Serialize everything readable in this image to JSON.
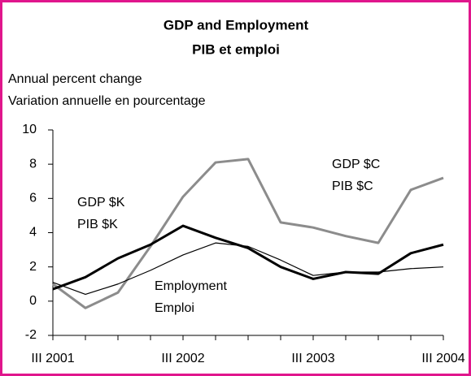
{
  "chart_data": {
    "type": "line",
    "title": "GDP and Employment",
    "subtitle": "PIB et emploi",
    "y_label": "Annual percent change",
    "y_label_fr": "Variation annuelle en pourcentage",
    "categories": [
      "III 2001",
      null,
      null,
      null,
      "III 2002",
      null,
      null,
      null,
      "III 2003",
      null,
      null,
      null,
      "III 2004"
    ],
    "series": [
      {
        "name": "GDP $C",
        "name_fr": "PIB $C",
        "color": "#8c8c8c",
        "width": 3,
        "values": [
          1.0,
          -0.4,
          0.5,
          3.2,
          6.1,
          8.1,
          8.3,
          4.6,
          4.3,
          3.8,
          3.4,
          6.5,
          7.2
        ]
      },
      {
        "name": "GDP $K",
        "name_fr": "PIB $K",
        "color": "#000000",
        "width": 3,
        "values": [
          0.7,
          1.4,
          2.5,
          3.3,
          4.4,
          3.7,
          3.1,
          2.0,
          1.3,
          1.7,
          1.6,
          2.8,
          3.3
        ]
      },
      {
        "name": "Employment",
        "name_fr": "Emploi",
        "color": "#000000",
        "width": 1.2,
        "values": [
          1.1,
          0.4,
          1.0,
          1.8,
          2.7,
          3.4,
          3.2,
          2.4,
          1.5,
          1.7,
          1.7,
          1.9,
          2.0
        ]
      }
    ],
    "ylim": [
      -2,
      10
    ],
    "yticks": [
      -2,
      0,
      2,
      4,
      6,
      8,
      10
    ],
    "grid": false
  }
}
